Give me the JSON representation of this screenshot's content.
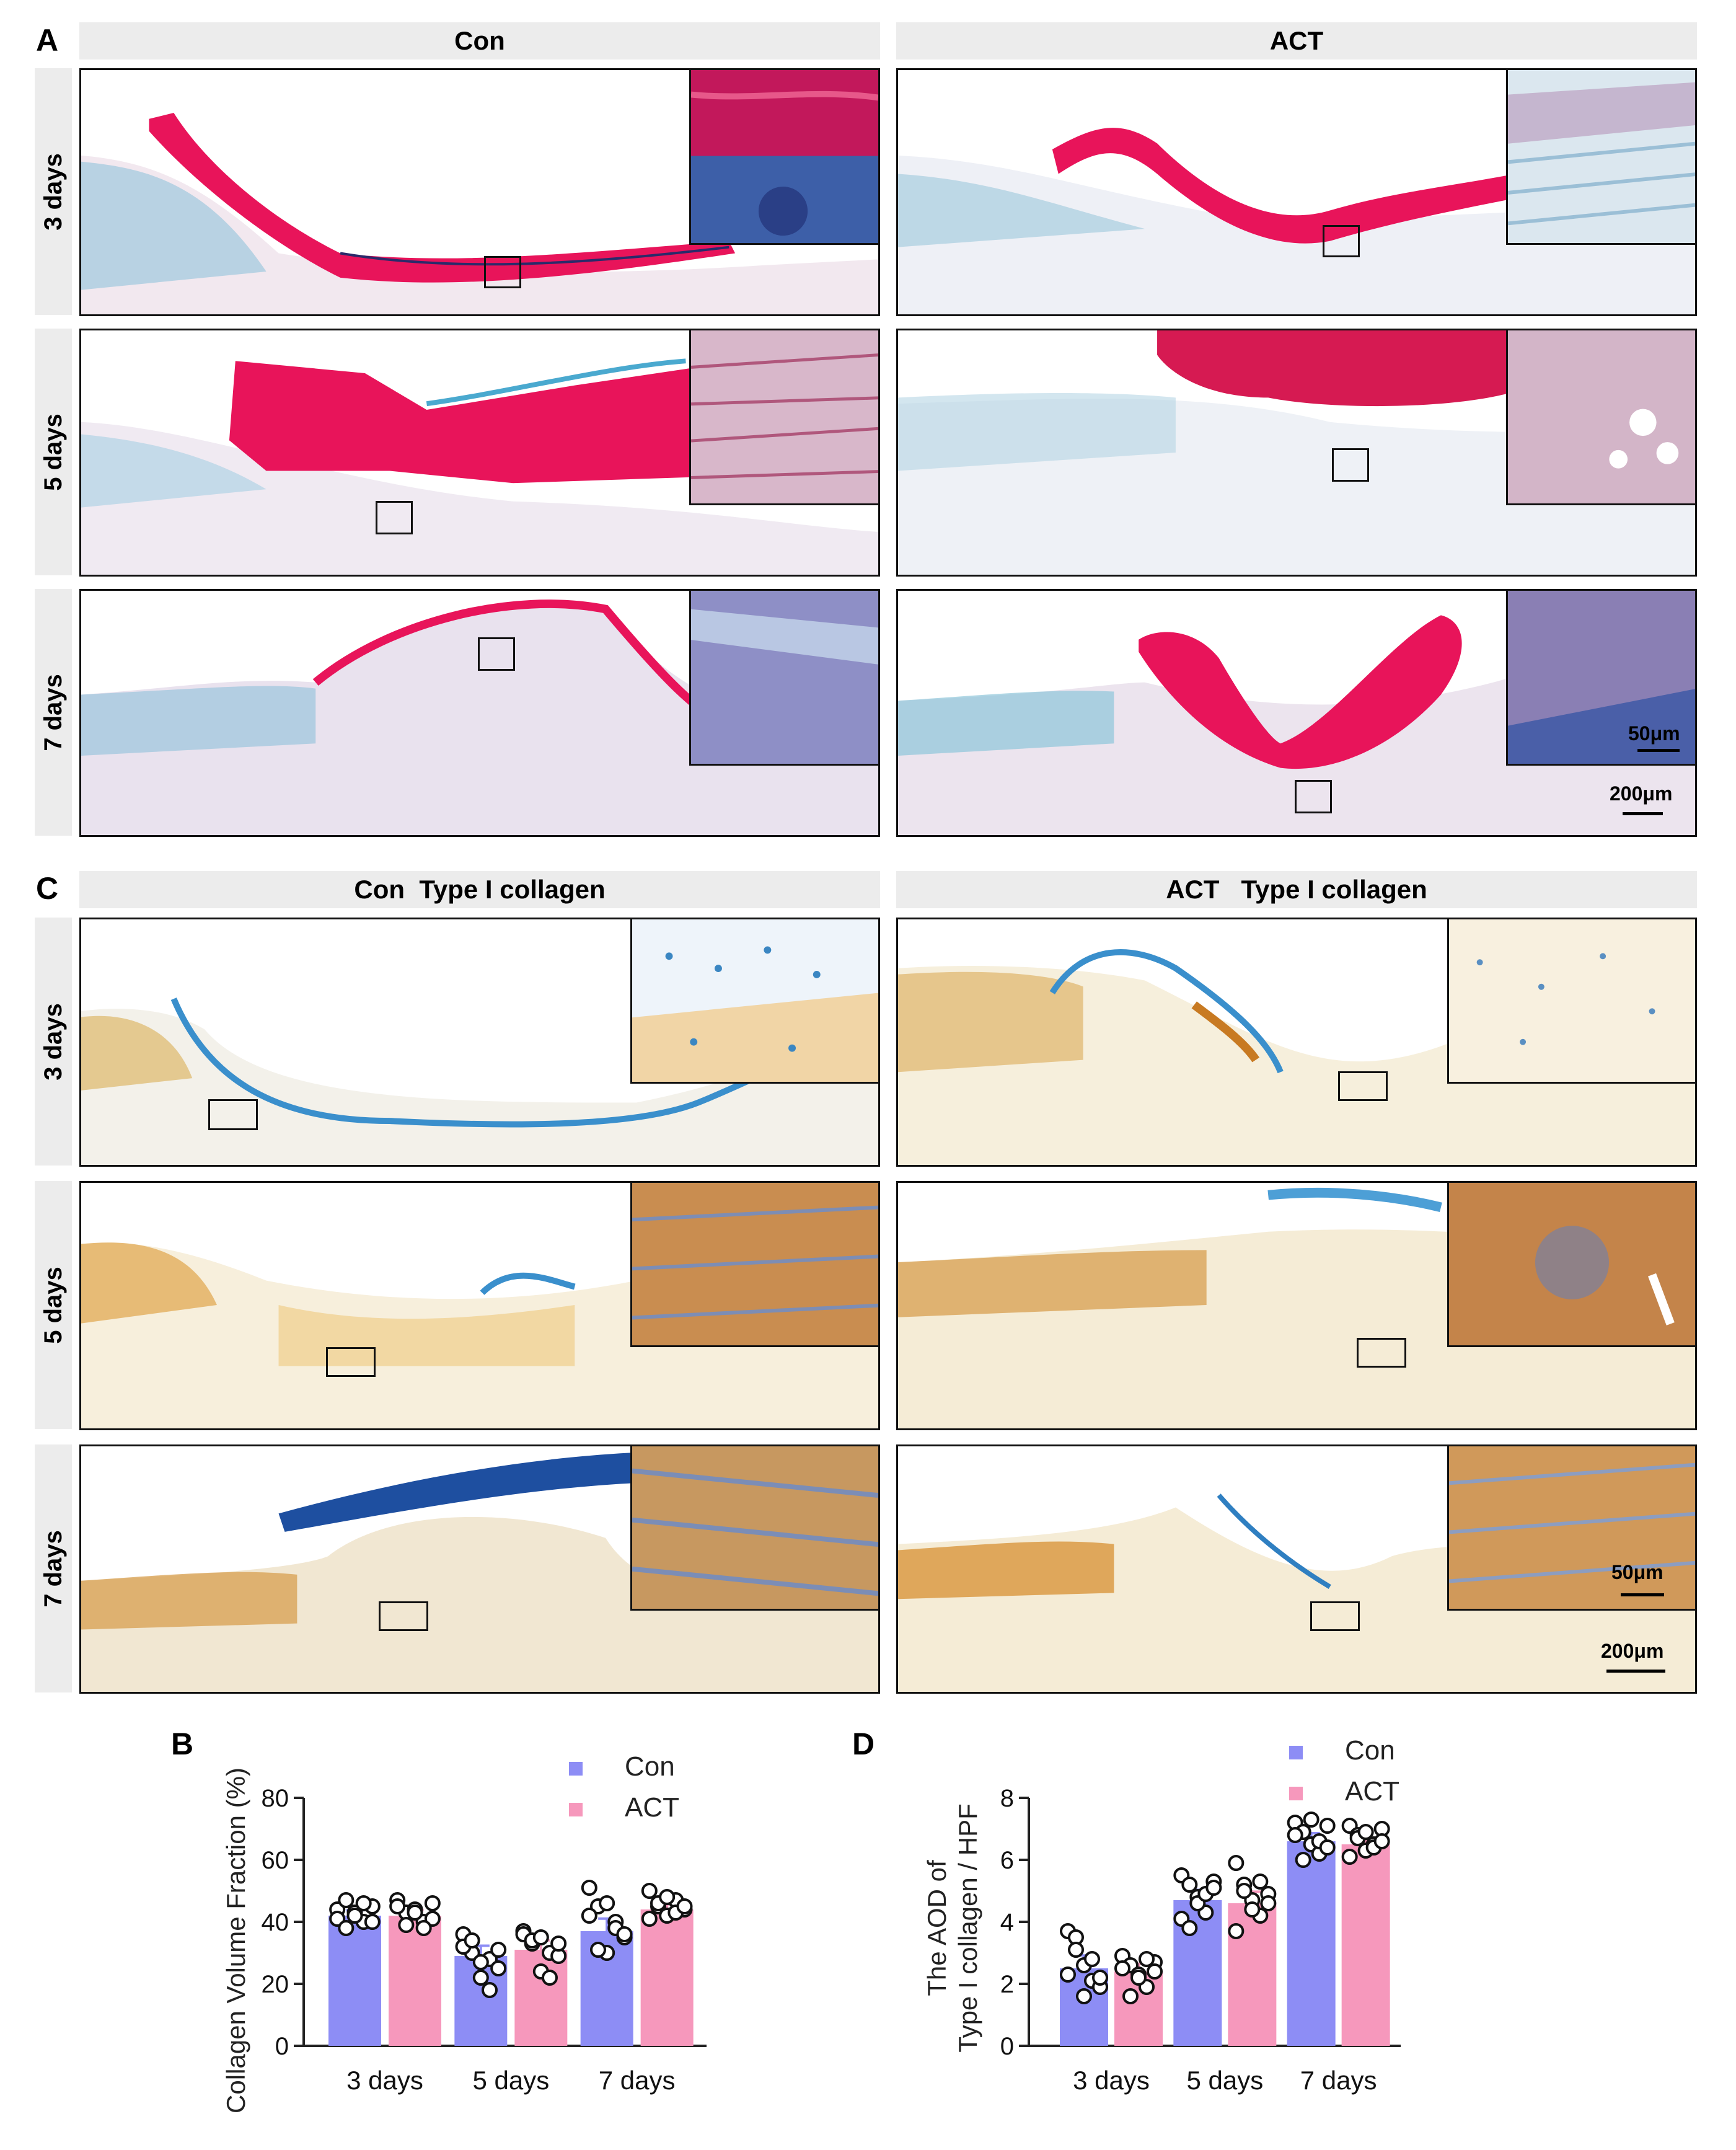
{
  "panels": {
    "A": "A",
    "B": "B",
    "C": "C",
    "D": "D"
  },
  "figure_A": {
    "columns": [
      "Con",
      "ACT"
    ],
    "rows": [
      "3 days",
      "5 days",
      "7 days"
    ],
    "scale_inset": "50μm",
    "scale_main": "200μm",
    "colors": {
      "tissue_pink": "#e8145a",
      "tissue_blue": "#3aa5c8",
      "background": "#f4eef3"
    }
  },
  "figure_C": {
    "columns": [
      "Con  Type I collagen",
      "ACT   Type I collagen"
    ],
    "rows": [
      "3 days",
      "5 days",
      "7 days"
    ],
    "scale_inset": "50μm",
    "scale_main": "200μm",
    "colors": {
      "tissue_brown": "#d9973c",
      "tissue_blue": "#2f7fc1",
      "background": "#f5efe2"
    }
  },
  "chart_data": [
    {
      "type": "bar",
      "panel": "B",
      "categories": [
        "3 days",
        "5 days",
        "7 days"
      ],
      "ylabel": "Collagen Volume Fraction (%)",
      "ylim": [
        0,
        80
      ],
      "yticks": [
        0,
        20,
        40,
        60,
        80
      ],
      "legend_position": "top-right",
      "series": [
        {
          "name": "Con",
          "color": "#8d8df5",
          "values": [
            42,
            29,
            37
          ],
          "points": [
            [
              44,
              47,
              43,
              40,
              45,
              41,
              38,
              42,
              46,
              40
            ],
            [
              36,
              30,
              22,
              28,
              25,
              32,
              34,
              27,
              18,
              31
            ],
            [
              51,
              45,
              30,
              40,
              35,
              42,
              31,
              46,
              38,
              36
            ]
          ]
        },
        {
          "name": "ACT",
          "color": "#f698bc",
          "values": [
            42,
            31,
            44
          ],
          "points": [
            [
              47,
              43,
              44,
              40,
              41,
              45,
              39,
              43,
              38,
              46
            ],
            [
              37,
              33,
              24,
              30,
              29,
              36,
              34,
              35,
              22,
              33
            ],
            [
              50,
              45,
              42,
              47,
              44,
              41,
              46,
              48,
              43,
              45
            ]
          ]
        }
      ]
    },
    {
      "type": "bar",
      "panel": "D",
      "categories": [
        "3 days",
        "5 days",
        "7 days"
      ],
      "ylabel": "The AOD of\nType I collagen / HPF",
      "ylim": [
        0,
        8
      ],
      "yticks": [
        0,
        2,
        4,
        6,
        8
      ],
      "legend_position": "top-right",
      "series": [
        {
          "name": "Con",
          "color": "#8d8df5",
          "values": [
            2.5,
            4.7,
            6.6
          ],
          "points": [
            [
              3.7,
              3.5,
              2.6,
              2.1,
              1.9,
              2.3,
              3.1,
              1.6,
              2.8,
              2.2
            ],
            [
              5.5,
              5.2,
              4.8,
              4.3,
              5.3,
              4.1,
              3.8,
              4.6,
              4.9,
              5.1
            ],
            [
              7.2,
              6.9,
              6.5,
              6.2,
              7.1,
              6.8,
              6.0,
              7.3,
              6.6,
              6.4
            ]
          ]
        },
        {
          "name": "ACT",
          "color": "#f698bc",
          "values": [
            2.4,
            4.6,
            6.5
          ],
          "points": [
            [
              2.9,
              2.6,
              2.3,
              1.9,
              2.7,
              2.5,
              1.6,
              2.2,
              2.8,
              2.4
            ],
            [
              5.9,
              5.2,
              4.7,
              4.2,
              4.9,
              3.7,
              5.0,
              4.4,
              5.3,
              4.6
            ],
            [
              7.1,
              6.8,
              6.3,
              6.5,
              7.0,
              6.1,
              6.7,
              6.9,
              6.4,
              6.6
            ]
          ]
        }
      ]
    }
  ]
}
